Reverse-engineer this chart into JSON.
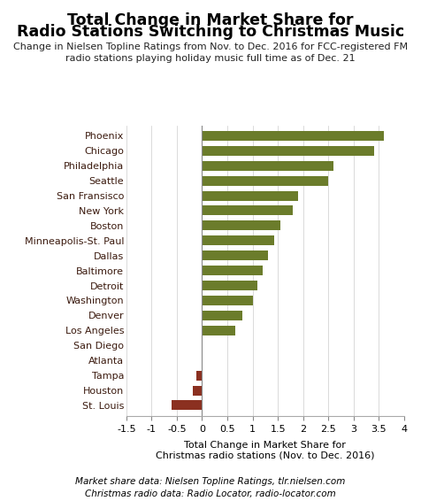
{
  "title_line1": "Total Change in Market Share for",
  "title_line2": "Radio Stations Switching to Christmas Music",
  "subtitle": "Change in Nielsen Topline Ratings from Nov. to Dec. 2016 for FCC-registered FM\nradio stations playing holiday music full time as of Dec. 21",
  "categories": [
    "Phoenix",
    "Chicago",
    "Philadelphia",
    "Seattle",
    "San Fransisco",
    "New York",
    "Boston",
    "Minneapolis-St. Paul",
    "Dallas",
    "Baltimore",
    "Detroit",
    "Washington",
    "Denver",
    "Los Angeles",
    "San Diego",
    "Atlanta",
    "Tampa",
    "Houston",
    "St. Louis"
  ],
  "values": [
    3.6,
    3.4,
    2.6,
    2.5,
    1.9,
    1.8,
    1.55,
    1.42,
    1.3,
    1.2,
    1.1,
    1.0,
    0.8,
    0.65,
    0.0,
    0.0,
    -0.12,
    -0.18,
    -0.6
  ],
  "bar_colors_positive": "#6b7c2b",
  "bar_colors_negative": "#8b3020",
  "xlim": [
    -1.5,
    4.0
  ],
  "xticks": [
    -1.5,
    -1.0,
    -0.5,
    0,
    0.5,
    1.0,
    1.5,
    2.0,
    2.5,
    3.0,
    3.5,
    4.0
  ],
  "xlabel_line1": "Total Change in Market Share for",
  "xlabel_line2": "Christmas radio stations (Nov. to Dec. 2016)",
  "footnote_line1": "Market share data: Nielsen Topline Ratings, tlr.nielsen.com",
  "footnote_line2": "Christmas radio data: Radio Locator, radio-locator.com",
  "title_fontsize": 12.5,
  "subtitle_fontsize": 8,
  "label_fontsize": 8,
  "tick_fontsize": 8,
  "footnote_fontsize": 7.5,
  "background_color": "#ffffff",
  "label_color": "#3b1a0e",
  "title_color": "#000000",
  "subtitle_color": "#222222"
}
